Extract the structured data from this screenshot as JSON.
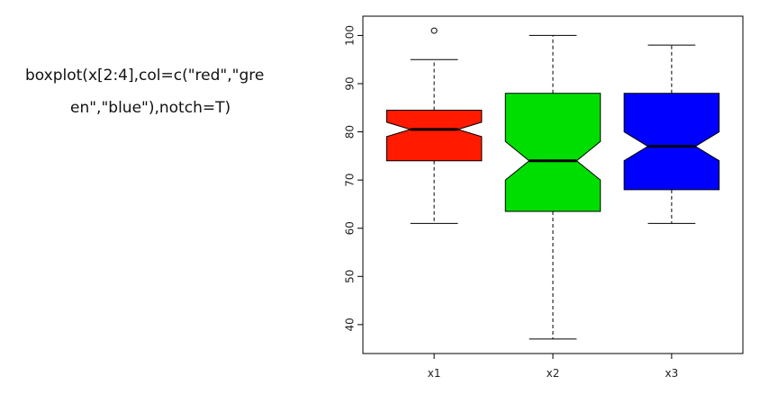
{
  "code": {
    "line1": "boxplot(x[2:4],col=c(\"red\",\"gre",
    "line2": "en\",\"blue\"),notch=T)"
  },
  "chart_data": {
    "type": "boxplot",
    "notched": true,
    "ylim": [
      34,
      104
    ],
    "y_ticks": [
      40,
      50,
      60,
      70,
      80,
      90,
      100
    ],
    "grid": false,
    "categories": [
      "x1",
      "x2",
      "x3"
    ],
    "boxes": [
      {
        "name": "x1",
        "color": "#ff1a00",
        "min": 61,
        "q1": 74,
        "median": 80.5,
        "q3": 84.5,
        "max": 95,
        "notch_low": 79,
        "notch_high": 82,
        "outliers": [
          101
        ]
      },
      {
        "name": "x2",
        "color": "#00dd00",
        "min": 37,
        "q1": 63.5,
        "median": 74,
        "q3": 88,
        "max": 100,
        "notch_low": 70,
        "notch_high": 78,
        "outliers": []
      },
      {
        "name": "x3",
        "color": "#0000ff",
        "min": 61,
        "q1": 68,
        "median": 77,
        "q3": 88,
        "max": 98,
        "notch_low": 74,
        "notch_high": 80,
        "outliers": []
      }
    ]
  }
}
